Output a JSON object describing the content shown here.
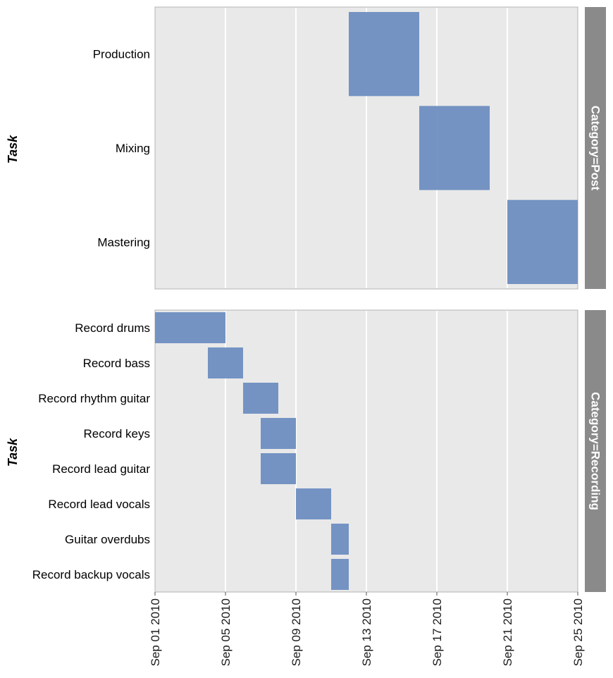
{
  "chart_data": {
    "type": "gantt",
    "x_axis_ticks": [
      "Sep 01 2010",
      "Sep 05 2010",
      "Sep 09 2010",
      "Sep 13 2010",
      "Sep 17 2010",
      "Sep 21 2010",
      "Sep 25 2010"
    ],
    "xlim": [
      "2010-09-01",
      "2010-09-25"
    ],
    "ylabel": "Task",
    "grid": true,
    "facets": [
      {
        "strip_label": "Category=Post",
        "tasks": [
          {
            "task": "Production",
            "start": "2010-09-12",
            "end": "2010-09-16"
          },
          {
            "task": "Mixing",
            "start": "2010-09-16",
            "end": "2010-09-20"
          },
          {
            "task": "Mastering",
            "start": "2010-09-21",
            "end": "2010-09-25"
          }
        ]
      },
      {
        "strip_label": "Category=Recording",
        "tasks": [
          {
            "task": "Record drums",
            "start": "2010-09-01",
            "end": "2010-09-05"
          },
          {
            "task": "Record bass",
            "start": "2010-09-04",
            "end": "2010-09-06"
          },
          {
            "task": "Record rhythm guitar",
            "start": "2010-09-06",
            "end": "2010-09-08"
          },
          {
            "task": "Record keys",
            "start": "2010-09-07",
            "end": "2010-09-09"
          },
          {
            "task": "Record lead guitar",
            "start": "2010-09-07",
            "end": "2010-09-09"
          },
          {
            "task": "Record lead vocals",
            "start": "2010-09-09",
            "end": "2010-09-11"
          },
          {
            "task": "Guitar overdubs",
            "start": "2010-09-11",
            "end": "2010-09-12"
          },
          {
            "task": "Record backup vocals",
            "start": "2010-09-11",
            "end": "2010-09-12"
          }
        ]
      }
    ],
    "bar_color": "#6b8cc0"
  }
}
